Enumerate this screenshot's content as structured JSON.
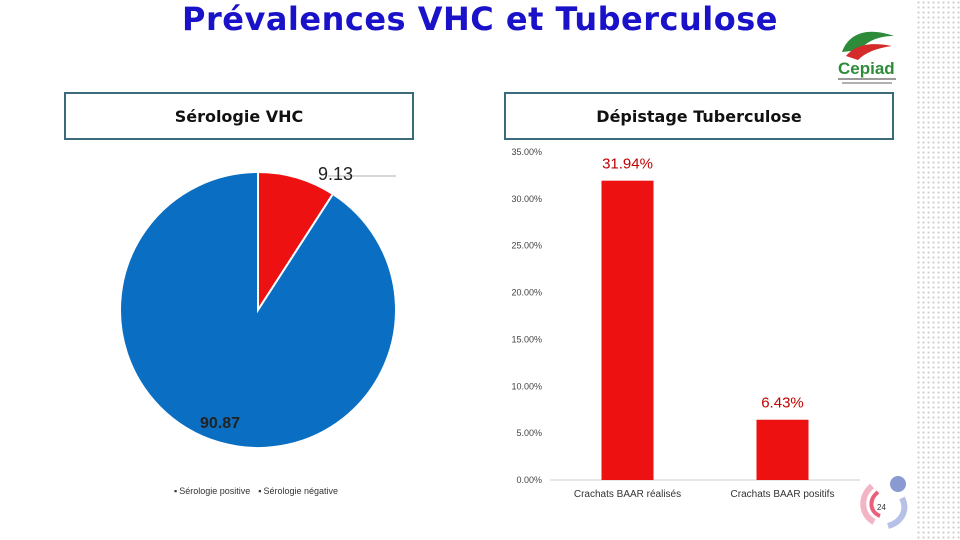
{
  "title": "Prévalences VHC et Tuberculose",
  "left_panel": {
    "heading": "Sérologie VHC"
  },
  "right_panel": {
    "heading": "Dépistage Tuberculose"
  },
  "logo": {
    "text": "Cepiad",
    "colors": {
      "green": "#2e8b3a",
      "red": "#d42a2a"
    }
  },
  "page_number": "24",
  "colors": {
    "title": "#1a12c8",
    "pie_positive": "#ee1111",
    "pie_negative": "#0a6fc2",
    "bar": "#ee1111"
  },
  "chart_data": [
    {
      "type": "pie",
      "title": "Sérologie VHC",
      "slices": [
        {
          "label": "Sérologie positive",
          "value": 9.13,
          "display": "9.13"
        },
        {
          "label": "Sérologie négative",
          "value": 90.87,
          "display": "90.87"
        }
      ],
      "legend": [
        "Sérologie positive",
        "Sérologie négative"
      ],
      "legend_position": "bottom"
    },
    {
      "type": "bar",
      "title": "Dépistage Tuberculose",
      "categories": [
        "Crachats BAAR réalisés",
        "Crachats BAAR positifs"
      ],
      "values": [
        31.94,
        6.43
      ],
      "data_labels": [
        "31.94%",
        "6.43%"
      ],
      "ylim": [
        0,
        35
      ],
      "yticks": [
        "0.00%",
        "5.00%",
        "10.00%",
        "15.00%",
        "20.00%",
        "25.00%",
        "30.00%",
        "35.00%"
      ],
      "grid": false
    }
  ]
}
